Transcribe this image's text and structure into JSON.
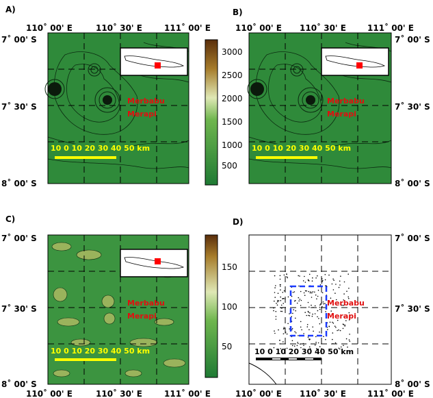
{
  "panels": {
    "A": {
      "label": "A)",
      "top_ticks": [
        "110˚ 00' E",
        "110˚ 30' E",
        "111˚ 00' E"
      ],
      "left_ticks": [
        "7˚ 00' S",
        "7˚ 30' S",
        "8˚ 00' S"
      ],
      "volcanoes": [
        "Merbabu",
        "Merapi"
      ],
      "scale_numbers": "10  0   10 20 30 40 50 km"
    },
    "B": {
      "label": "B)",
      "top_ticks": [
        "110˚ 00' E",
        "110˚ 30' E",
        "111˚ 00' E"
      ],
      "right_ticks": [
        "7˚ 00' S",
        "7˚ 30' S",
        "8˚ 00' S"
      ],
      "volcanoes": [
        "Merbabu",
        "Merapi"
      ],
      "scale_numbers": "10  0   10 20 30 40 50 km"
    },
    "C": {
      "label": "C)",
      "bottom_ticks": [
        "110˚ 00' E",
        "110˚ 30' E",
        "111˚ 00' E"
      ],
      "left_ticks": [
        "7˚ 00' S",
        "7˚ 30' S",
        "8˚ 00' S"
      ],
      "volcanoes": [
        "Merbabu",
        "Merapi"
      ],
      "scale_numbers": "10  0   10 20 30 40 50 km"
    },
    "D": {
      "label": "D)",
      "bottom_ticks": [
        "110˚ 00' E",
        "110˚ 30' E",
        "111˚ 00' E"
      ],
      "right_ticks": [
        "7˚ 00' S",
        "7˚ 30' S",
        "8˚ 00' S"
      ],
      "volcanoes": [
        "Merbabu",
        "Merapi"
      ],
      "scale_numbers": "10  0   10 20 30 40 50 km"
    }
  },
  "colorbars": {
    "top": {
      "ticks": [
        "3000",
        "2500",
        "2000",
        "1500",
        "1000",
        "500"
      ]
    },
    "bottom": {
      "ticks": [
        "150",
        "100",
        "50"
      ]
    }
  },
  "colors": {
    "map_green": "#2f8a3a",
    "volcano_text": "#e01010",
    "scale_text": "#ffff00",
    "survey_box": "#1a3aff",
    "marker": "#ff0000"
  }
}
